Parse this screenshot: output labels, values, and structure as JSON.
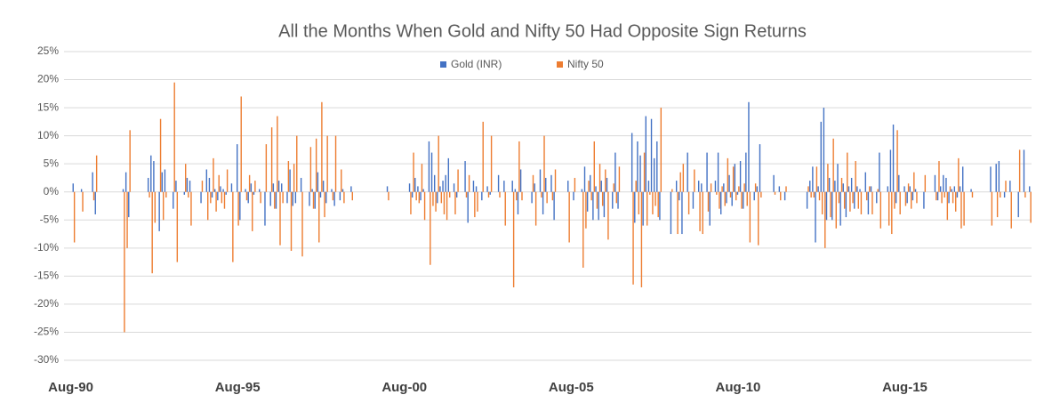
{
  "chart_data": {
    "type": "bar",
    "title": "All the Months When Gold and Nifty 50 Had Opposite Sign Returns",
    "legend": "top",
    "grid": true,
    "ylim": [
      -30,
      25
    ],
    "yticks": [
      {
        "value": -30,
        "label": "-30%"
      },
      {
        "value": -25,
        "label": "-25%"
      },
      {
        "value": -20,
        "label": "-20%"
      },
      {
        "value": -15,
        "label": "-15%"
      },
      {
        "value": -10,
        "label": "-10%"
      },
      {
        "value": -5,
        "label": "-5%"
      },
      {
        "value": 0,
        "label": "0%"
      },
      {
        "value": 5,
        "label": "5%"
      },
      {
        "value": 10,
        "label": "10%"
      },
      {
        "value": 15,
        "label": "15%"
      },
      {
        "value": 20,
        "label": "20%"
      },
      {
        "value": 25,
        "label": "25%"
      }
    ],
    "categories": [
      "Aug-90",
      null,
      null,
      null,
      null,
      null,
      null,
      null,
      null,
      null,
      null,
      null,
      null,
      null,
      null,
      null,
      null,
      null,
      null,
      null,
      null,
      null,
      null,
      null,
      null,
      null,
      null,
      null,
      null,
      null,
      null,
      null,
      null,
      null,
      null,
      null,
      null,
      null,
      null,
      null,
      null,
      null,
      null,
      null,
      null,
      null,
      null,
      null,
      null,
      null,
      null,
      null,
      null,
      null,
      null,
      null,
      null,
      null,
      null,
      null,
      "Aug-95",
      null,
      null,
      null,
      null,
      null,
      null,
      null,
      null,
      null,
      null,
      null,
      null,
      null,
      null,
      null,
      null,
      null,
      null,
      null,
      null,
      null,
      null,
      null,
      null,
      null,
      null,
      null,
      null,
      null,
      null,
      null,
      null,
      null,
      null,
      null,
      null,
      null,
      null,
      null,
      null,
      null,
      null,
      null,
      null,
      null,
      null,
      null,
      null,
      null,
      null,
      null,
      null,
      null,
      null,
      null,
      null,
      null,
      null,
      null,
      "Aug-00",
      null,
      null,
      null,
      null,
      null,
      null,
      null,
      null,
      null,
      null,
      null,
      null,
      null,
      null,
      null,
      null,
      null,
      null,
      null,
      null,
      null,
      null,
      null,
      null,
      null,
      null,
      null,
      null,
      null,
      null,
      null,
      null,
      null,
      null,
      null,
      null,
      null,
      null,
      null,
      null,
      null,
      null,
      null,
      null,
      null,
      null,
      null,
      null,
      null,
      null,
      null,
      null,
      null,
      null,
      null,
      null,
      null,
      null,
      null,
      "Aug-05",
      null,
      null,
      null,
      null,
      null,
      null,
      null,
      null,
      null,
      null,
      null,
      null,
      null,
      null,
      null,
      null,
      null,
      null,
      null,
      null,
      null,
      null,
      null,
      null,
      null,
      null,
      null,
      null,
      null,
      null,
      null,
      null,
      null,
      null,
      null,
      null,
      null,
      null,
      null,
      null,
      null,
      null,
      null,
      null,
      null,
      null,
      null,
      null,
      null,
      null,
      null,
      null,
      null,
      null,
      null,
      null,
      null,
      null,
      null,
      "Aug-10",
      null,
      null,
      null,
      null,
      null,
      null,
      null,
      null,
      null,
      null,
      null,
      null,
      null,
      null,
      null,
      null,
      null,
      null,
      null,
      null,
      null,
      null,
      null,
      null,
      null,
      null,
      null,
      null,
      null,
      null,
      null,
      null,
      null,
      null,
      null,
      null,
      null,
      null,
      null,
      null,
      null,
      null,
      null,
      null,
      null,
      null,
      null,
      null,
      null,
      null,
      null,
      null,
      null,
      null,
      null,
      null,
      null,
      null,
      null,
      "Aug-15",
      null,
      null,
      null,
      null,
      null,
      null,
      null,
      null,
      null,
      null,
      null,
      null,
      null,
      null,
      null,
      null,
      null,
      null,
      null,
      null,
      null,
      null,
      null,
      null,
      null,
      null,
      null,
      null,
      null,
      null,
      null,
      null,
      null,
      null,
      null,
      null,
      null,
      null,
      null,
      null,
      null,
      null,
      null,
      null,
      null,
      null,
      null
    ],
    "series": [
      {
        "name": "Gold (INR)",
        "color": "#4472c4",
        "values": [
          null,
          null,
          null,
          1.5,
          null,
          null,
          0.5,
          null,
          null,
          null,
          3.5,
          -4,
          null,
          null,
          null,
          null,
          null,
          null,
          null,
          null,
          null,
          0.5,
          3.5,
          -4.5,
          null,
          null,
          null,
          null,
          null,
          null,
          2.5,
          6.5,
          5.5,
          null,
          -7,
          3.5,
          4,
          null,
          null,
          -3,
          2,
          null,
          null,
          -0.5,
          2.5,
          2,
          null,
          null,
          null,
          -2,
          null,
          4,
          2.5,
          -1,
          0.5,
          -1.5,
          1,
          0.5,
          -0.5,
          null,
          1.5,
          null,
          8.5,
          -5,
          null,
          0.5,
          -2,
          1.5,
          -0.5,
          null,
          0.5,
          null,
          -6,
          null,
          -2.5,
          1.5,
          -3,
          2,
          1.5,
          null,
          -2,
          4,
          -2.5,
          -2,
          null,
          2.5,
          null,
          null,
          -2.5,
          0.5,
          -3,
          3.5,
          -1,
          2,
          -2,
          null,
          0.5,
          -2.5,
          null,
          -1.5,
          0.5,
          null,
          null,
          1,
          null,
          null,
          null,
          null,
          null,
          null,
          null,
          null,
          null,
          null,
          null,
          null,
          1,
          null,
          null,
          null,
          null,
          null,
          null,
          null,
          1.5,
          -1,
          2.5,
          1,
          -1.5,
          0.5,
          null,
          9,
          7,
          3,
          -2,
          1,
          2,
          3,
          6,
          null,
          1.5,
          -1,
          null,
          null,
          5.5,
          -5.5,
          null,
          2,
          1,
          null,
          -1.5,
          null,
          1,
          -0.5,
          null,
          null,
          3,
          null,
          2,
          null,
          null,
          2,
          0.5,
          -4,
          4,
          null,
          null,
          null,
          -2,
          1.5,
          null,
          4,
          -4,
          2.5,
          null,
          3,
          -5,
          null,
          null,
          null,
          null,
          2,
          null,
          -1.5,
          null,
          null,
          0.5,
          4.5,
          -3.5,
          3,
          -5,
          1,
          -5,
          2,
          -4.5,
          2.5,
          null,
          -3,
          7,
          -3,
          null,
          null,
          null,
          null,
          10.5,
          -5.5,
          9,
          6.5,
          -6,
          13.5,
          2,
          13,
          6,
          9,
          -5,
          null,
          null,
          null,
          -7.5,
          null,
          2,
          -1.5,
          -7.5,
          null,
          7,
          null,
          -3,
          null,
          2,
          1.5,
          null,
          7,
          -6,
          null,
          2,
          7,
          -4,
          1.5,
          -2,
          3,
          -2.5,
          5,
          -0.5,
          5.5,
          -3,
          7,
          16,
          null,
          -1.5,
          1,
          8.5,
          null,
          null,
          null,
          null,
          3,
          null,
          1,
          null,
          -1.5,
          null,
          null,
          null,
          null,
          null,
          null,
          null,
          -3,
          2,
          4.5,
          -9,
          1,
          12.5,
          15,
          -5,
          2.5,
          -5,
          2,
          5,
          -6,
          1.5,
          -4.5,
          1,
          2.5,
          -3,
          1,
          0.5,
          null,
          3.5,
          -4,
          1,
          null,
          -2,
          7,
          null,
          null,
          1,
          7.5,
          12,
          -2,
          3,
          null,
          1,
          -2,
          1,
          -1.5,
          0.5,
          null,
          null,
          -3,
          null,
          null,
          null,
          3,
          -1.5,
          1,
          3,
          2.5,
          -2,
          0.5,
          1,
          -1,
          1,
          4.5,
          null,
          null,
          0.5,
          null,
          null,
          null,
          null,
          null,
          null,
          4.5,
          null,
          5,
          5.5,
          null,
          -1,
          null,
          2,
          null,
          null,
          -4.5,
          null,
          7.5,
          null,
          1
        ]
      },
      {
        "name": "Nifty 50",
        "color": "#ed7d31",
        "values": [
          null,
          null,
          null,
          -9,
          null,
          null,
          -3.5,
          null,
          null,
          null,
          -1.5,
          6.5,
          null,
          null,
          null,
          null,
          null,
          null,
          null,
          null,
          null,
          -25,
          -10,
          11,
          null,
          null,
          null,
          null,
          null,
          null,
          -1,
          -14.5,
          -5.5,
          null,
          13,
          -5,
          -1,
          null,
          null,
          19.5,
          -12.5,
          null,
          null,
          5,
          -1,
          -6,
          null,
          null,
          null,
          2,
          null,
          -5,
          -2,
          6,
          -3.5,
          3,
          -2,
          -3,
          4,
          null,
          -12.5,
          null,
          -6,
          17,
          null,
          -1.5,
          3,
          -7,
          2,
          null,
          -2,
          null,
          8.5,
          null,
          11.5,
          -3,
          13.5,
          -9.5,
          -2,
          null,
          5.5,
          -10.5,
          5,
          10,
          null,
          -11.5,
          null,
          null,
          8,
          -3,
          9.5,
          -9,
          16,
          -4.5,
          10,
          null,
          -1.5,
          10,
          null,
          4,
          -2,
          null,
          null,
          -1.5,
          null,
          null,
          null,
          null,
          null,
          null,
          null,
          null,
          null,
          null,
          null,
          null,
          -1.5,
          null,
          null,
          null,
          null,
          null,
          null,
          null,
          -4,
          7,
          -1.5,
          -2,
          5,
          -5,
          null,
          -13,
          -2.5,
          -3.5,
          10,
          -2,
          -4,
          -5,
          -1,
          null,
          -4,
          4,
          null,
          null,
          -1,
          3,
          null,
          -4.5,
          -3.5,
          null,
          12.5,
          null,
          -1,
          10,
          null,
          null,
          -1,
          null,
          -6,
          null,
          null,
          -17,
          -1.5,
          9,
          -1.5,
          null,
          null,
          null,
          3,
          -6,
          null,
          -1,
          10,
          -2,
          null,
          -1.5,
          4,
          null,
          null,
          null,
          null,
          -9,
          null,
          2.5,
          null,
          null,
          -13.5,
          -6.5,
          2,
          -1.5,
          9,
          -3,
          5,
          -2.5,
          4,
          -8.5,
          null,
          1.5,
          -2,
          4.5,
          null,
          null,
          null,
          null,
          -16.5,
          2,
          -4,
          -17,
          7,
          -6,
          -0.5,
          -4,
          -2.5,
          -4.5,
          15,
          null,
          null,
          null,
          0.5,
          null,
          -7.5,
          3.5,
          5,
          null,
          -4,
          null,
          4,
          null,
          -7,
          -7.5,
          null,
          -3.5,
          1.5,
          null,
          -0.5,
          -3,
          1,
          -2.5,
          6,
          -1,
          4.5,
          -1.5,
          1,
          -3,
          1.5,
          -2.5,
          -9,
          null,
          1.5,
          -9.5,
          -1,
          null,
          null,
          null,
          null,
          -0.5,
          null,
          -1.5,
          null,
          1,
          null,
          null,
          null,
          null,
          null,
          null,
          null,
          1,
          -1,
          -1,
          4.5,
          -1.5,
          -4,
          -10,
          5,
          -4.5,
          9.5,
          -6.5,
          -2,
          2.5,
          -3,
          7,
          -3.5,
          -2,
          5.5,
          -3,
          -4,
          null,
          -1.5,
          1,
          -4,
          null,
          0.5,
          -6.5,
          null,
          null,
          -6,
          -7.5,
          -3,
          11,
          -4,
          null,
          -2.5,
          1.5,
          -3,
          3.5,
          -2,
          null,
          null,
          3,
          null,
          null,
          null,
          -1.5,
          5.5,
          -2,
          -1,
          -5,
          1,
          -2,
          -3.5,
          6,
          -6.5,
          -6,
          null,
          null,
          -1,
          null,
          null,
          null,
          null,
          null,
          null,
          -6,
          null,
          -4.5,
          -1,
          null,
          2,
          null,
          -6.5,
          null,
          null,
          7.5,
          null,
          -1,
          null,
          -5.5
        ]
      }
    ]
  }
}
